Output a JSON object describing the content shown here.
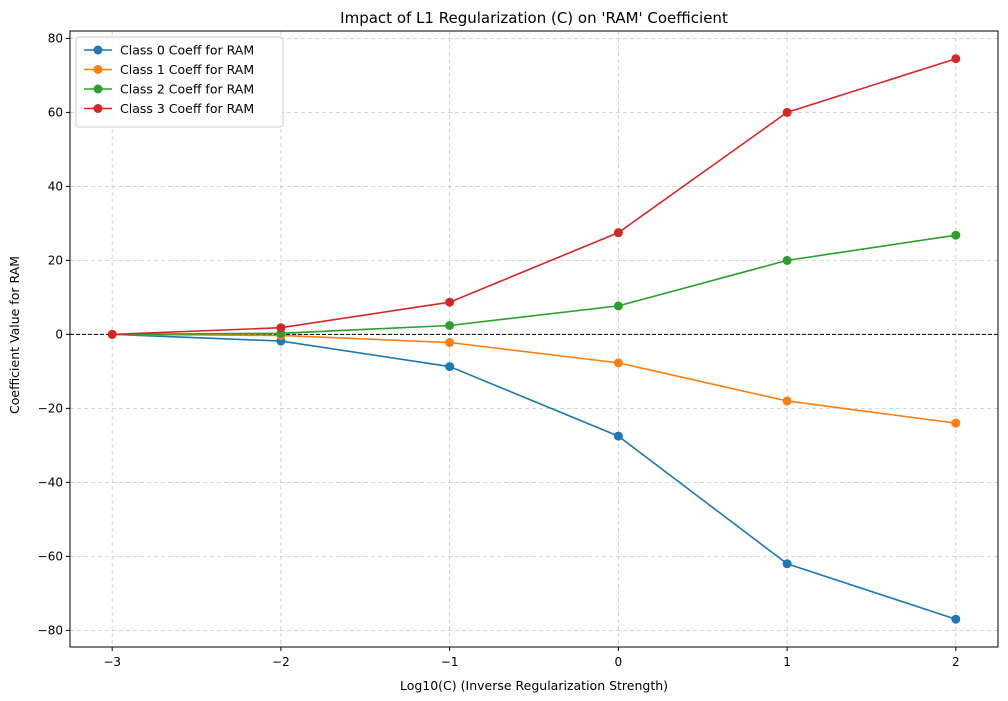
{
  "chart_data": {
    "type": "line",
    "title": "Impact of L1 Regularization (C) on 'RAM' Coefficient",
    "xlabel": "Log10(C) (Inverse Regularization Strength)",
    "ylabel": "Coefficient Value for RAM",
    "x": [
      -3,
      -2,
      -1,
      0,
      1,
      2
    ],
    "xlim": [
      -3.25,
      2.25
    ],
    "ylim": [
      -84.5,
      82
    ],
    "xticks": [
      -3,
      -2,
      -1,
      0,
      1,
      2
    ],
    "xtick_labels": [
      "−3",
      "−2",
      "−1",
      "0",
      "1",
      "2"
    ],
    "yticks": [
      -80,
      -60,
      -40,
      -20,
      0,
      20,
      40,
      60,
      80
    ],
    "ytick_labels": [
      "−80",
      "−60",
      "−40",
      "−20",
      "0",
      "20",
      "40",
      "60",
      "80"
    ],
    "grid": true,
    "zero_line": 0,
    "legend_position": "top-left",
    "series": [
      {
        "name": "Class 0 Coeff for RAM",
        "color": "#1f77b4",
        "values": [
          0,
          -1.8,
          -8.7,
          -27.5,
          -62,
          -77
        ]
      },
      {
        "name": "Class 1 Coeff for RAM",
        "color": "#ff7f0e",
        "values": [
          0,
          -0.3,
          -2.2,
          -7.7,
          -18,
          -24
        ]
      },
      {
        "name": "Class 2 Coeff for RAM",
        "color": "#2ca02c",
        "values": [
          0,
          0.3,
          2.4,
          7.7,
          20,
          26.8
        ]
      },
      {
        "name": "Class 3 Coeff for RAM",
        "color": "#d62728",
        "values": [
          0,
          1.8,
          8.7,
          27.5,
          60,
          74.5
        ]
      }
    ]
  }
}
